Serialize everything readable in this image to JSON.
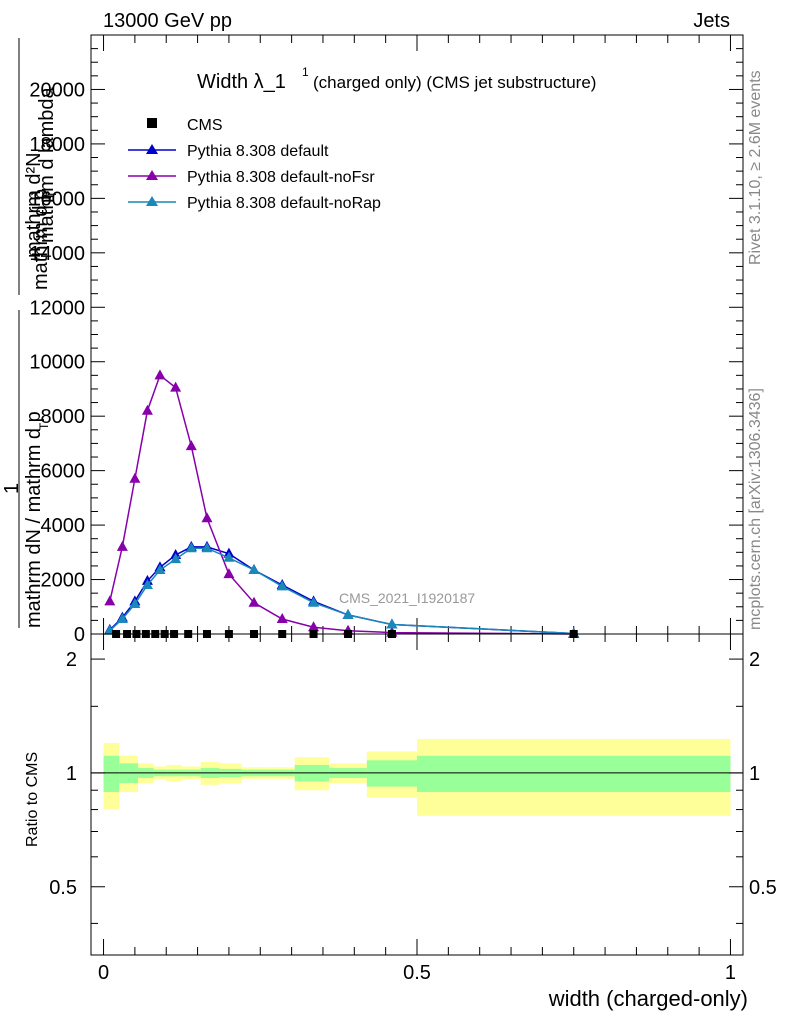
{
  "header": {
    "left": "13000 GeV pp",
    "right": "Jets"
  },
  "side_labels": {
    "rivet": "Rivet 3.1.10, ≥ 2.6M events",
    "mcplots": "mcplots.cern.ch [arXiv:1306.3436]"
  },
  "chart_data": [
    {
      "type": "line",
      "panel": "main",
      "title_main": "Width λ_1",
      "title_sup": "1",
      "title_rest": "(charged only) (CMS jet substructure)",
      "ylabel_top": "mathrm d²N",
      "ylabel_top2": "mathrm d p",
      "ylabel_top2_sub": "T",
      "ylabel_top3": "mathrm d lambda",
      "ylabel_one": "1",
      "ylabel_bottom": "mathrm dN / mathrm d p",
      "ylabel_bottom_sub": "T",
      "ylim": [
        0,
        22000
      ],
      "y_ticks": [
        0,
        2000,
        4000,
        6000,
        8000,
        10000,
        12000,
        14000,
        16000,
        18000,
        20000
      ],
      "y_tick_labels": [
        "0",
        "2000",
        "4000",
        "6000",
        "8000",
        "10000",
        "12000",
        "14000",
        "16000",
        "18000",
        "20000"
      ],
      "xlim": [
        -0.02,
        1.02
      ],
      "watermark": "CMS_2021_I1920187",
      "legend_position": "top-left",
      "cms": {
        "name": "CMS",
        "color": "#000000",
        "x": [
          0.02,
          0.0375,
          0.0525,
          0.0675,
          0.0825,
          0.0975,
          0.1125,
          0.135,
          0.165,
          0.2,
          0.24,
          0.285,
          0.335,
          0.39,
          0.46,
          0.75
        ],
        "y": [
          0,
          0,
          0,
          0,
          0,
          0,
          0,
          0,
          0,
          0,
          0,
          0,
          0,
          0,
          0,
          0
        ]
      },
      "series": [
        {
          "name": "Pythia 8.308 default",
          "color": "#0000cc",
          "x": [
            0.01,
            0.03,
            0.05,
            0.07,
            0.09,
            0.115,
            0.14,
            0.165,
            0.2,
            0.24,
            0.285,
            0.335,
            0.39,
            0.46,
            0.75
          ],
          "y": [
            150,
            600,
            1200,
            1950,
            2450,
            2900,
            3200,
            3200,
            2950,
            2350,
            1800,
            1200,
            700,
            350,
            20
          ]
        },
        {
          "name": "Pythia 8.308 default-noFsr",
          "color": "#8800aa",
          "x": [
            0.01,
            0.03,
            0.05,
            0.07,
            0.09,
            0.115,
            0.14,
            0.165,
            0.2,
            0.24,
            0.285,
            0.335,
            0.39,
            0.46,
            0.75
          ],
          "y": [
            1200,
            3200,
            5700,
            8200,
            9500,
            9050,
            6900,
            4250,
            2200,
            1150,
            550,
            250,
            120,
            50,
            0
          ]
        },
        {
          "name": "Pythia 8.308 default-noRap",
          "color": "#1a88b8",
          "x": [
            0.01,
            0.03,
            0.05,
            0.07,
            0.09,
            0.115,
            0.14,
            0.165,
            0.2,
            0.24,
            0.285,
            0.335,
            0.39,
            0.46,
            0.75
          ],
          "y": [
            120,
            550,
            1100,
            1800,
            2350,
            2750,
            3150,
            3150,
            2800,
            2350,
            1750,
            1150,
            700,
            350,
            20
          ]
        }
      ]
    },
    {
      "type": "area",
      "panel": "ratio",
      "ylabel": "Ratio to CMS",
      "ylim": [
        0.33,
        2.33
      ],
      "y_ticks": [
        0.5,
        1,
        2
      ],
      "y_tick_labels": [
        "0.5",
        "1",
        "2"
      ],
      "xlabel": "width (charged-only)",
      "xlim": [
        -0.02,
        1.02
      ],
      "x_ticks": [
        0,
        0.5,
        1
      ],
      "x_tick_labels": [
        "0",
        "0.5",
        "1"
      ],
      "bins": [
        {
          "lo": 0.0,
          "hi": 0.025,
          "stat": 0.11,
          "total": 0.2
        },
        {
          "lo": 0.025,
          "hi": 0.055,
          "stat": 0.06,
          "total": 0.11
        },
        {
          "lo": 0.055,
          "hi": 0.08,
          "stat": 0.03,
          "total": 0.06
        },
        {
          "lo": 0.08,
          "hi": 0.1,
          "stat": 0.02,
          "total": 0.04
        },
        {
          "lo": 0.1,
          "hi": 0.125,
          "stat": 0.02,
          "total": 0.05
        },
        {
          "lo": 0.125,
          "hi": 0.155,
          "stat": 0.02,
          "total": 0.04
        },
        {
          "lo": 0.155,
          "hi": 0.185,
          "stat": 0.03,
          "total": 0.07
        },
        {
          "lo": 0.185,
          "hi": 0.22,
          "stat": 0.025,
          "total": 0.06
        },
        {
          "lo": 0.22,
          "hi": 0.26,
          "stat": 0.02,
          "total": 0.035
        },
        {
          "lo": 0.26,
          "hi": 0.305,
          "stat": 0.02,
          "total": 0.035
        },
        {
          "lo": 0.305,
          "hi": 0.36,
          "stat": 0.05,
          "total": 0.1
        },
        {
          "lo": 0.36,
          "hi": 0.42,
          "stat": 0.03,
          "total": 0.06
        },
        {
          "lo": 0.42,
          "hi": 0.5,
          "stat": 0.08,
          "total": 0.14
        },
        {
          "lo": 0.5,
          "hi": 1.0,
          "stat": 0.11,
          "total": 0.23
        }
      ],
      "stat_color": "#99ff99",
      "total_color": "#ffff99"
    }
  ]
}
